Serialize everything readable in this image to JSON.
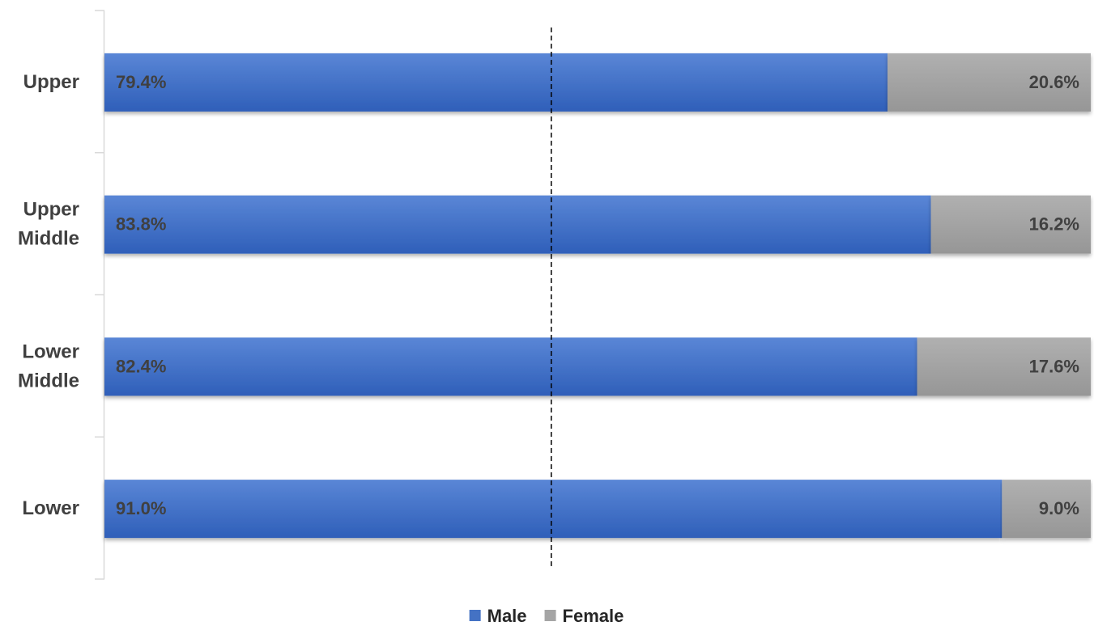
{
  "chart_data": {
    "type": "bar",
    "orientation": "horizontal",
    "stacked": true,
    "categories": [
      "Upper",
      "Upper Middle",
      "Lower Middle",
      "Lower"
    ],
    "category_lines": [
      [
        "Upper"
      ],
      [
        "Upper",
        "Middle"
      ],
      [
        "Lower",
        "Middle"
      ],
      [
        "Lower"
      ]
    ],
    "series": [
      {
        "name": "Male",
        "color": "#4472c4",
        "values": [
          79.4,
          83.8,
          82.4,
          91.0
        ],
        "labels": [
          "79.4%",
          "83.8%",
          "82.4%",
          "91.0%"
        ]
      },
      {
        "name": "Female",
        "color": "#a5a5a5",
        "values": [
          20.6,
          16.2,
          17.6,
          9.0
        ],
        "labels": [
          "20.6%",
          "16.2%",
          "17.6%",
          "9.0%"
        ]
      }
    ],
    "xlim": [
      0,
      100
    ],
    "reference_line": {
      "x": 45.3,
      "style": "dashed"
    },
    "legend_position": "bottom",
    "grid": false,
    "title": "",
    "xlabel": "",
    "ylabel": ""
  }
}
